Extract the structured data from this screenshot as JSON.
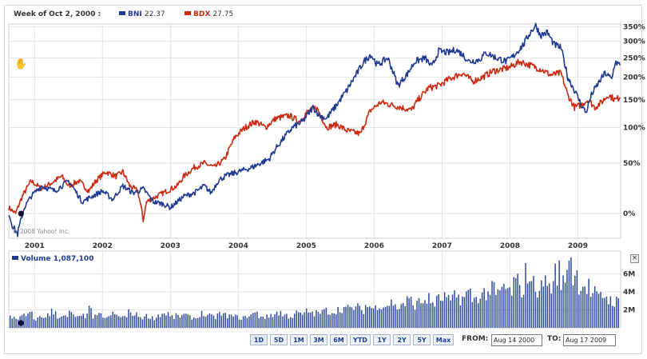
{
  "header": {
    "week_label": "Week of Oct 2, 2000 :",
    "bni_label": "BNI",
    "bni_value": "22.37",
    "bdx_label": "BDX",
    "bdx_value": "27.75"
  },
  "volume_panel": {
    "label": "Volume",
    "value": "1,087,100"
  },
  "copyright": "© 2008 Yahoo! Inc.",
  "range_buttons": [
    "1D",
    "5D",
    "1M",
    "3M",
    "6M",
    "YTD",
    "1Y",
    "2Y",
    "5Y",
    "Max"
  ],
  "date_range": {
    "from_label": "FROM:",
    "from_value": "Aug 14 2000",
    "to_label": "TO:",
    "to_value": "Aug 17 2009"
  },
  "colors": {
    "bni": "#1f3a93",
    "bdx": "#cc2a10",
    "grid": "#e4e4e4",
    "volume": "#2c4a9a"
  },
  "icons": {
    "pan": "hand-pan-icon",
    "close": "close-icon"
  },
  "chart_data": [
    {
      "type": "line",
      "x_ticks": [
        "2001",
        "2002",
        "2003",
        "2004",
        "2005",
        "2006",
        "2007",
        "2008",
        "2009"
      ],
      "y_ticks": [
        "0%",
        "50%",
        "100%",
        "150%",
        "200%",
        "250%",
        "300%",
        "350%"
      ],
      "scale": "log",
      "grid": true,
      "legend": "top-left",
      "series": [
        {
          "name": "BNI",
          "points": [
            [
              2000.62,
              0
            ],
            [
              2000.68,
              -10
            ],
            [
              2000.75,
              -15
            ],
            [
              2000.85,
              5
            ],
            [
              2000.95,
              15
            ],
            [
              2001.1,
              25
            ],
            [
              2001.3,
              20
            ],
            [
              2001.5,
              30
            ],
            [
              2001.7,
              10
            ],
            [
              2001.85,
              15
            ],
            [
              2002.0,
              20
            ],
            [
              2002.15,
              12
            ],
            [
              2002.3,
              25
            ],
            [
              2002.45,
              18
            ],
            [
              2002.6,
              22
            ],
            [
              2002.75,
              10
            ],
            [
              2002.9,
              8
            ],
            [
              2003.0,
              5
            ],
            [
              2003.1,
              10
            ],
            [
              2003.2,
              15
            ],
            [
              2003.35,
              18
            ],
            [
              2003.5,
              25
            ],
            [
              2003.6,
              18
            ],
            [
              2003.7,
              30
            ],
            [
              2003.8,
              35
            ],
            [
              2004.0,
              40
            ],
            [
              2004.2,
              45
            ],
            [
              2004.45,
              55
            ],
            [
              2004.6,
              75
            ],
            [
              2004.8,
              100
            ],
            [
              2004.95,
              110
            ],
            [
              2005.1,
              135
            ],
            [
              2005.2,
              120
            ],
            [
              2005.3,
              115
            ],
            [
              2005.45,
              140
            ],
            [
              2005.6,
              170
            ],
            [
              2005.75,
              210
            ],
            [
              2005.85,
              240
            ],
            [
              2005.95,
              260
            ],
            [
              2006.05,
              230
            ],
            [
              2006.2,
              250
            ],
            [
              2006.35,
              180
            ],
            [
              2006.5,
              210
            ],
            [
              2006.6,
              240
            ],
            [
              2006.75,
              250
            ],
            [
              2006.85,
              225
            ],
            [
              2006.95,
              270
            ],
            [
              2007.1,
              265
            ],
            [
              2007.2,
              275
            ],
            [
              2007.3,
              260
            ],
            [
              2007.4,
              240
            ],
            [
              2007.55,
              245
            ],
            [
              2007.65,
              265
            ],
            [
              2007.8,
              250
            ],
            [
              2007.95,
              240
            ],
            [
              2008.05,
              255
            ],
            [
              2008.2,
              290
            ],
            [
              2008.3,
              330
            ],
            [
              2008.38,
              355
            ],
            [
              2008.45,
              320
            ],
            [
              2008.55,
              330
            ],
            [
              2008.65,
              290
            ],
            [
              2008.75,
              280
            ],
            [
              2008.85,
              200
            ],
            [
              2008.95,
              170
            ],
            [
              2009.05,
              140
            ],
            [
              2009.12,
              125
            ],
            [
              2009.2,
              160
            ],
            [
              2009.3,
              185
            ],
            [
              2009.4,
              210
            ],
            [
              2009.5,
              195
            ],
            [
              2009.55,
              240
            ],
            [
              2009.62,
              230
            ]
          ]
        },
        {
          "name": "BDX",
          "points": [
            [
              2000.62,
              5
            ],
            [
              2000.72,
              0
            ],
            [
              2000.82,
              15
            ],
            [
              2000.95,
              30
            ],
            [
              2001.1,
              22
            ],
            [
              2001.25,
              28
            ],
            [
              2001.4,
              35
            ],
            [
              2001.5,
              25
            ],
            [
              2001.65,
              30
            ],
            [
              2001.8,
              20
            ],
            [
              2001.9,
              30
            ],
            [
              2002.05,
              40
            ],
            [
              2002.2,
              35
            ],
            [
              2002.3,
              40
            ],
            [
              2002.4,
              25
            ],
            [
              2002.52,
              20
            ],
            [
              2002.6,
              -5
            ],
            [
              2002.65,
              10
            ],
            [
              2002.8,
              15
            ],
            [
              2002.95,
              20
            ],
            [
              2003.1,
              25
            ],
            [
              2003.2,
              35
            ],
            [
              2003.35,
              45
            ],
            [
              2003.5,
              50
            ],
            [
              2003.65,
              45
            ],
            [
              2003.8,
              55
            ],
            [
              2003.95,
              85
            ],
            [
              2004.1,
              100
            ],
            [
              2004.25,
              110
            ],
            [
              2004.4,
              100
            ],
            [
              2004.55,
              115
            ],
            [
              2004.75,
              120
            ],
            [
              2004.9,
              110
            ],
            [
              2005.0,
              125
            ],
            [
              2005.15,
              135
            ],
            [
              2005.3,
              100
            ],
            [
              2005.45,
              105
            ],
            [
              2005.6,
              95
            ],
            [
              2005.8,
              90
            ],
            [
              2005.95,
              130
            ],
            [
              2006.1,
              145
            ],
            [
              2006.25,
              140
            ],
            [
              2006.4,
              135
            ],
            [
              2006.55,
              130
            ],
            [
              2006.65,
              150
            ],
            [
              2006.8,
              175
            ],
            [
              2006.95,
              180
            ],
            [
              2007.1,
              195
            ],
            [
              2007.3,
              210
            ],
            [
              2007.45,
              190
            ],
            [
              2007.6,
              200
            ],
            [
              2007.75,
              215
            ],
            [
              2007.9,
              220
            ],
            [
              2008.0,
              225
            ],
            [
              2008.15,
              240
            ],
            [
              2008.3,
              230
            ],
            [
              2008.45,
              220
            ],
            [
              2008.6,
              205
            ],
            [
              2008.75,
              210
            ],
            [
              2008.85,
              160
            ],
            [
              2008.95,
              135
            ],
            [
              2009.05,
              140
            ],
            [
              2009.15,
              150
            ],
            [
              2009.25,
              135
            ],
            [
              2009.35,
              145
            ],
            [
              2009.45,
              160
            ],
            [
              2009.55,
              150
            ],
            [
              2009.62,
              155
            ]
          ]
        }
      ]
    },
    {
      "type": "bar",
      "name": "Volume",
      "y_ticks": [
        "2M",
        "4M",
        "6M"
      ],
      "values_m": [
        1.2,
        1.1,
        1.3,
        1.5,
        1.0,
        1.2,
        1.4,
        1.8,
        1.3,
        1.2,
        1.6,
        1.1,
        1.3,
        2.0,
        1.2,
        1.4,
        1.1,
        1.5,
        1.3,
        1.2,
        1.7,
        1.4,
        1.2,
        1.3,
        1.1,
        1.5,
        1.6,
        1.2,
        1.3,
        1.4,
        1.2,
        1.1,
        1.6,
        1.3,
        1.2,
        1.5,
        1.4,
        1.3,
        1.2,
        1.1,
        1.4,
        1.6,
        1.3,
        1.2,
        1.5,
        1.7,
        1.4,
        1.3,
        1.6,
        1.5,
        1.8,
        1.6,
        1.7,
        1.9,
        1.8,
        2.0,
        2.2,
        2.1,
        2.3,
        2.0,
        2.4,
        2.2,
        2.6,
        2.5,
        2.8,
        2.3,
        2.7,
        3.0,
        2.6,
        2.9,
        3.2,
        2.8,
        3.1,
        3.4,
        3.0,
        3.5,
        3.3,
        3.8,
        3.2,
        3.6,
        3.9,
        4.2,
        3.7,
        4.5,
        4.0,
        5.0,
        4.3,
        6.0,
        4.8,
        4.4,
        5.2,
        4.6,
        6.2,
        5.0,
        7.8,
        5.8,
        4.9,
        4.6,
        3.8,
        3.4,
        3.6,
        3.1,
        2.9
      ]
    }
  ]
}
